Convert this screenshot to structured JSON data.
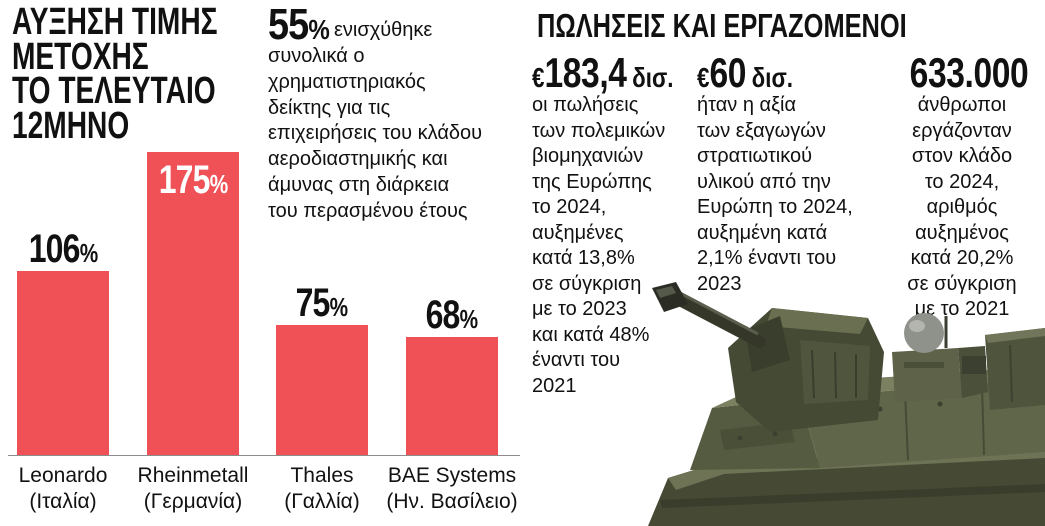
{
  "colors": {
    "bar": "#ef5157",
    "text": "#111111",
    "bar_label_inside": "#ffffff",
    "background": "#ffffff"
  },
  "chart_data": {
    "type": "bar",
    "title_lines": [
      "ΑΥΞΗΣΗ ΤΙΜΗΣ",
      "ΜΕΤΟΧΗΣ",
      "ΤΟ ΤΕΛΕΥΤΑΙΟ",
      "12ΜΗΝΟ"
    ],
    "categories": [
      "Leonardo",
      "Rheinmetall",
      "Thales",
      "BAE Systems"
    ],
    "category_sublabels": [
      "(Ιταλία)",
      "(Γερμανία)",
      "(Γαλλία)",
      "(Ην. Βασίλειο)"
    ],
    "values": [
      106,
      175,
      75,
      68
    ],
    "value_suffix": "%",
    "ylim": [
      0,
      175
    ],
    "grid": false,
    "legend": "none"
  },
  "market_index": {
    "value": "55",
    "unit": "%",
    "first_line": "ενισχύθηκε",
    "lines": [
      "συνολικά ο",
      "χρηματιστηριακός",
      "δείκτης για τις",
      "επιχειρήσεις του κλάδου",
      "αεροδιαστημικής και",
      "άμυνας στη διάρκεια",
      "του περασμένου έτους"
    ]
  },
  "sales_section": {
    "title": "ΠΩΛΗΣΕΙΣ ΚΑΙ ΕΡΓΑΖΟΜΕΝΟΙ",
    "stats": [
      {
        "prefix": "€",
        "amount": "183,4",
        "unit": "δισ.",
        "lines": [
          "οι πωλήσεις",
          "των πολεμικών",
          "βιομηχανιών",
          "της Ευρώπης",
          "το 2024,",
          "αυξημένες",
          "κατά 13,8%",
          "σε σύγκριση",
          "με το 2023",
          "και κατά 48%",
          "έναντι του",
          "2021"
        ]
      },
      {
        "prefix": "€",
        "amount": "60",
        "unit": "δισ.",
        "lines": [
          "ήταν η αξία",
          "των εξαγωγών",
          "στρατιωτικού",
          "υλικού από την",
          "Ευρώπη το 2024,",
          "αυξημένη κατά",
          "2,1% έναντι του",
          "2023"
        ]
      },
      {
        "amount": "633.000",
        "lines": [
          "άνθρωποι",
          "εργάζονταν",
          "στον κλάδο",
          "το 2024,",
          "αριθμός",
          "αυξημένος",
          "κατά 20,2%",
          "σε σύγκριση",
          "με το 2021"
        ]
      }
    ]
  }
}
